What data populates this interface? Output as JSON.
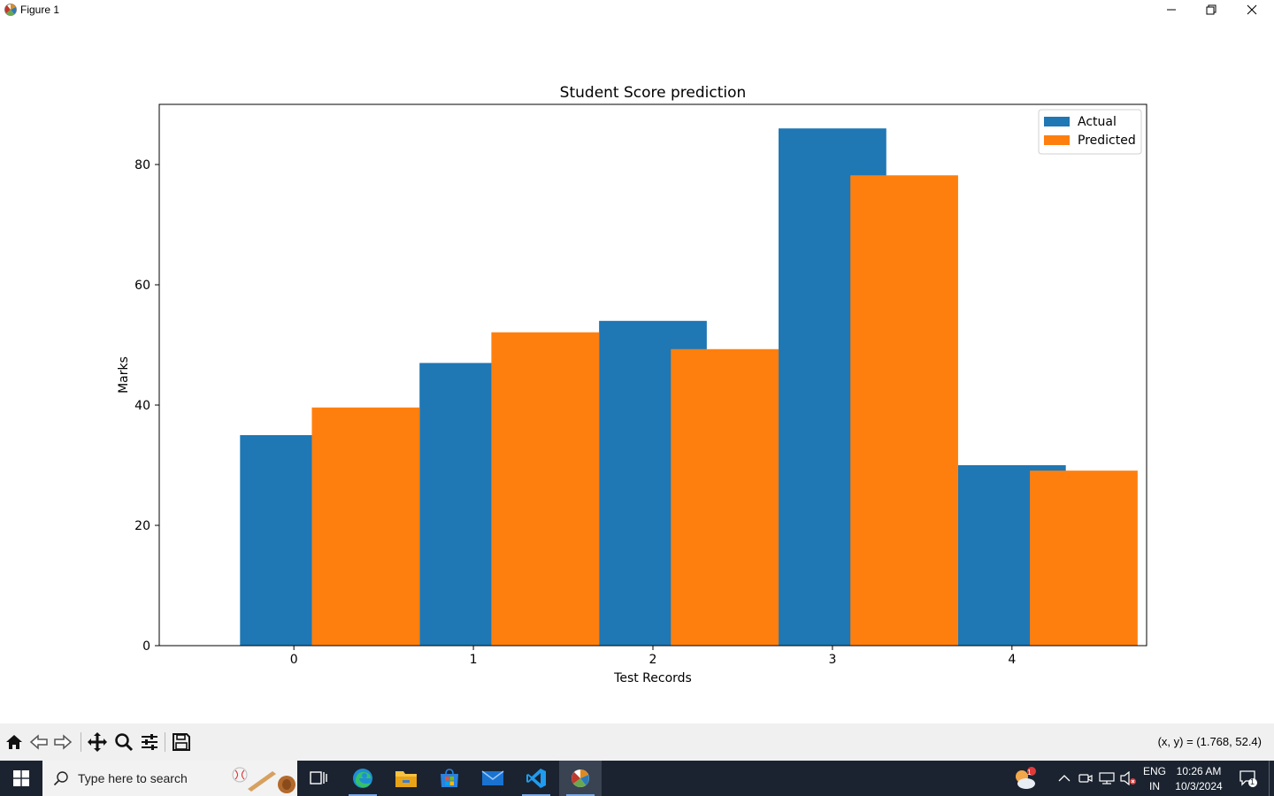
{
  "window": {
    "title": "Figure 1"
  },
  "chart_data": {
    "type": "bar",
    "title": "Student Score prediction",
    "xlabel": "Test Records",
    "ylabel": "Marks",
    "categories": [
      "0",
      "1",
      "2",
      "3",
      "4"
    ],
    "x_ticks": [
      "0",
      "1",
      "2",
      "3",
      "4"
    ],
    "y_ticks": [
      "0",
      "20",
      "40",
      "60",
      "80"
    ],
    "ylim": [
      0,
      90
    ],
    "xlim": [
      -0.75,
      4.75
    ],
    "bar_width": 0.6,
    "series": [
      {
        "name": "Actual",
        "color": "#1f77b4",
        "offset": -0.3,
        "values": [
          35,
          47,
          54,
          86,
          30
        ]
      },
      {
        "name": "Predicted",
        "color": "#ff7f0e",
        "offset": 0.1,
        "values": [
          39.6,
          52.1,
          49.3,
          78.2,
          29.1
        ]
      }
    ],
    "legend": "top-right",
    "grid": false
  },
  "toolbar": {
    "icons": [
      "home-icon",
      "back-icon",
      "forward-icon",
      "pan-icon",
      "zoom-icon",
      "configure-subplots-icon",
      "save-icon"
    ],
    "coordinates": "(x, y) = (1.768, 52.4)"
  },
  "taskbar": {
    "search_placeholder": "Type here to search",
    "language": "ENG",
    "region": "IN",
    "time": "10:26 AM",
    "date": "10/3/2024",
    "weather_badge": "1",
    "notification_count": "1",
    "apps": [
      "task-view-icon",
      "edge-icon",
      "file-explorer-icon",
      "microsoft-store-icon",
      "mail-icon",
      "vscode-icon",
      "python-figure-icon"
    ]
  }
}
